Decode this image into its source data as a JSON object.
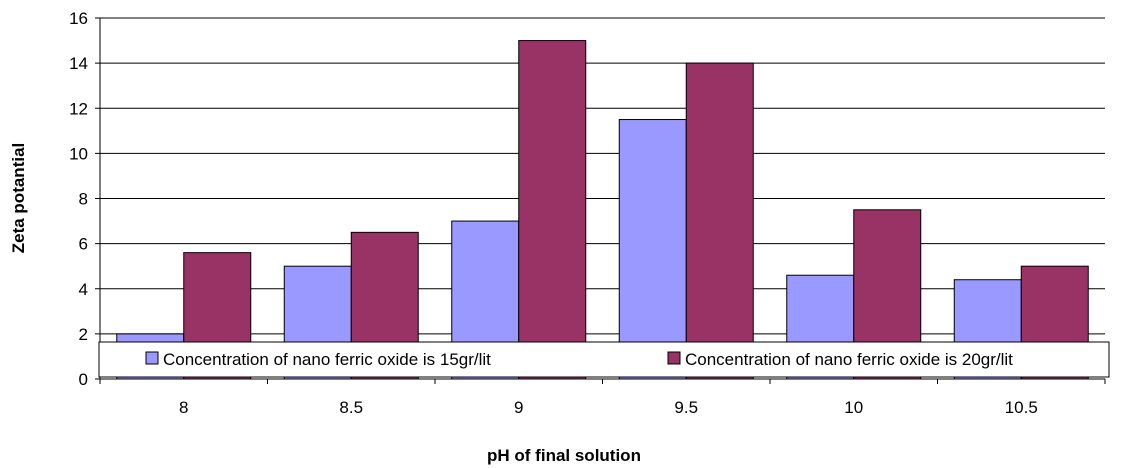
{
  "chart_data": {
    "type": "bar",
    "title": "",
    "xlabel": "pH of final solution",
    "ylabel": "Zeta potantial",
    "categories": [
      "8",
      "8.5",
      "9",
      "9.5",
      "10",
      "10.5"
    ],
    "series": [
      {
        "name": "Concentration of nano ferric oxide is 15gr/lit",
        "color": "#9999ff",
        "values": [
          2,
          5,
          7,
          11.5,
          4.6,
          4.4
        ]
      },
      {
        "name": "Concentration of nano ferric oxide is 20gr/lit",
        "color": "#993366",
        "values": [
          5.6,
          6.5,
          15,
          14,
          7.5,
          5
        ]
      }
    ],
    "ylim": [
      0,
      16
    ],
    "yticks": [
      "0",
      "2",
      "4",
      "6",
      "8",
      "10",
      "12",
      "14",
      "16"
    ],
    "grid": true,
    "legend_position": "bottom-inside"
  }
}
